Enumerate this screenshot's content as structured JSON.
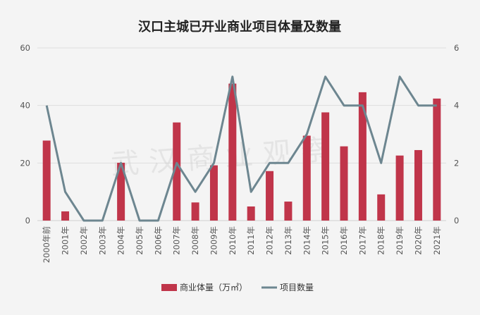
{
  "chart_data": {
    "type": "bar+line",
    "title": "汉口主城已开业商业项目体量及数量",
    "categories": [
      "2000年前",
      "2001年",
      "2002年",
      "2003年",
      "2004年",
      "2005年",
      "2006年",
      "2007年",
      "2008年",
      "2009年",
      "2010年",
      "2011年",
      "2012年",
      "2013年",
      "2014年",
      "2015年",
      "2016年",
      "2017年",
      "2018年",
      "2019年",
      "2020年",
      "2021年"
    ],
    "series": [
      {
        "name": "商业体量（万㎡）",
        "kind": "bar",
        "axis": "left",
        "color": "#c0354a",
        "values": [
          27.8,
          3.2,
          0,
          0,
          20.1,
          0,
          0,
          34.1,
          6.3,
          19.2,
          47.6,
          4.9,
          17.2,
          6.6,
          29.5,
          37.6,
          25.8,
          44.6,
          9.1,
          22.6,
          24.5,
          42.4
        ]
      },
      {
        "name": "项目数量",
        "kind": "line",
        "axis": "right",
        "color": "#6d8690",
        "values": [
          4,
          1,
          0,
          0,
          2,
          0,
          0,
          2,
          1,
          2,
          5,
          1,
          2,
          2,
          3,
          5,
          4,
          4,
          2,
          5,
          4,
          4
        ]
      }
    ],
    "y_left": {
      "min": 0,
      "max": 60,
      "ticks": [
        0,
        20,
        40,
        60
      ]
    },
    "y_right": {
      "min": 0,
      "max": 6,
      "ticks": [
        0,
        2,
        4,
        6
      ]
    },
    "grid": true,
    "legend": "bottom-center",
    "watermark": "武汉商业观察"
  }
}
